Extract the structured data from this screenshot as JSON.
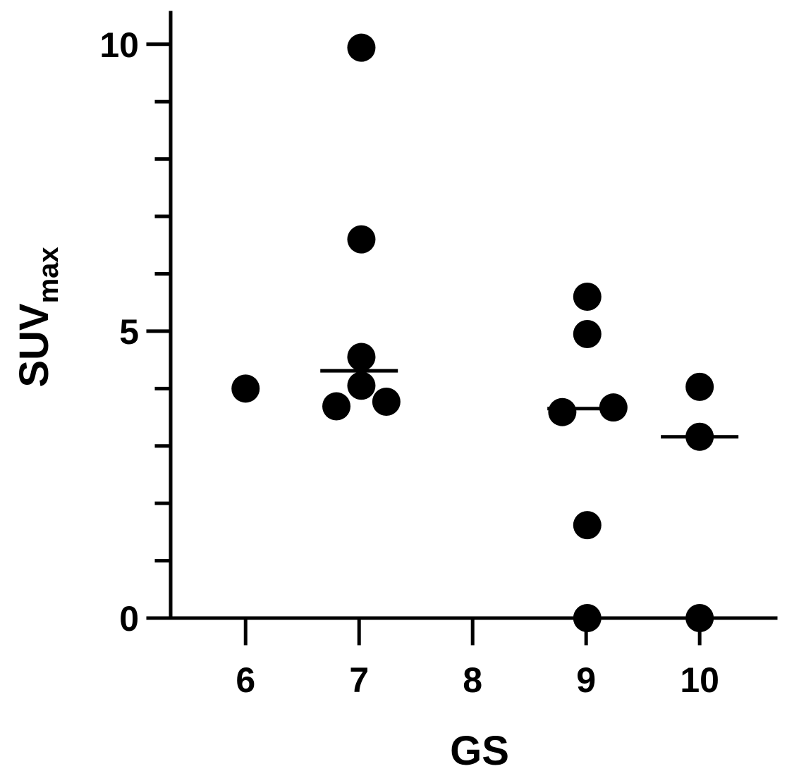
{
  "chart_data": {
    "type": "scatter",
    "x_label": "GS",
    "y_label": "SUV",
    "y_label_sub": "max",
    "color": "#000000",
    "x": [
      6.0,
      7.02,
      7.02,
      7.02,
      7.02,
      6.8,
      7.24,
      9.01,
      9.01,
      8.79,
      9.24,
      9.01,
      9.01,
      10.0,
      10.0,
      10.0
    ],
    "values": [
      4.0,
      9.94,
      6.6,
      4.55,
      4.05,
      3.69,
      3.77,
      5.6,
      4.95,
      3.59,
      3.67,
      1.62,
      0,
      4.03,
      3.16,
      0
    ],
    "medians": [
      {
        "x": 7,
        "value": 4.31
      },
      {
        "x": 9,
        "value": 3.65
      },
      {
        "x": 10,
        "value": 3.16
      }
    ],
    "xlim": [
      5.34,
      10.67
    ],
    "ylim": [
      0,
      10.55
    ],
    "xticks": [
      6,
      7,
      8,
      9,
      10
    ],
    "yticks": [
      0,
      5,
      10
    ],
    "minor_yticks": [
      1,
      2,
      3,
      4,
      6,
      7,
      8,
      9
    ]
  }
}
